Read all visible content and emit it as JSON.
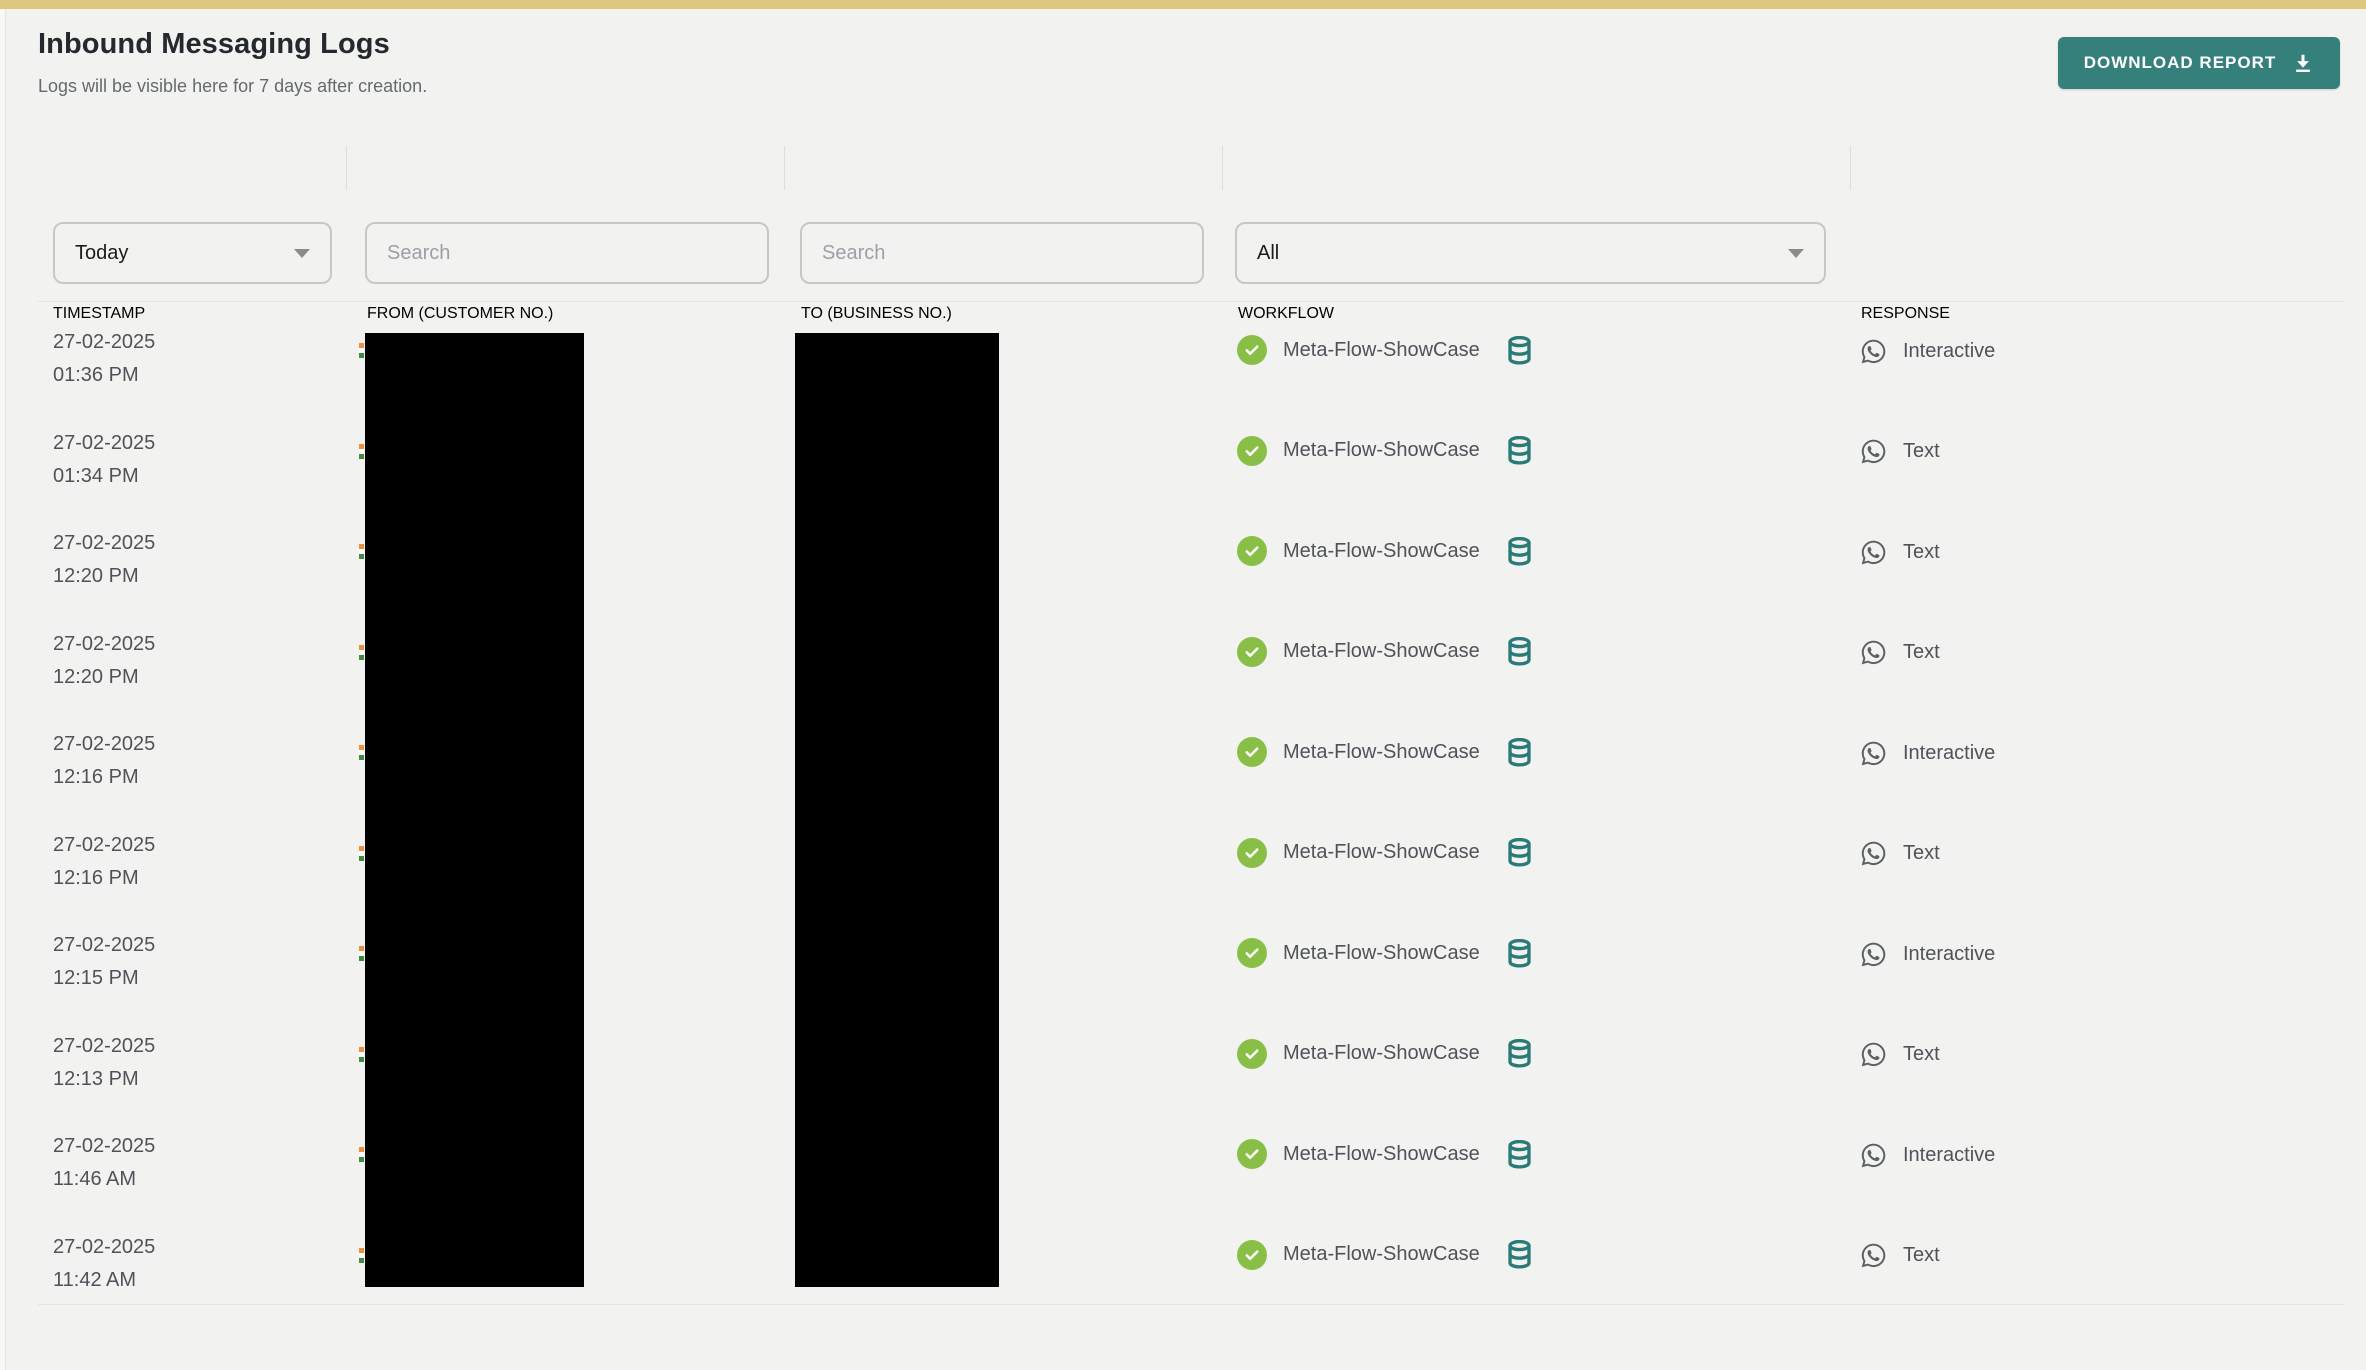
{
  "topbar": {
    "color": "#dcc87e"
  },
  "header": {
    "title": "Inbound Messaging Logs",
    "subtitle": "Logs will be visible here for 7 days after creation.",
    "download_button_label": "DOWNLOAD REPORT",
    "download_button_color": "#36807b"
  },
  "filters": {
    "timestamp_select_value": "Today",
    "from_search_placeholder": "Search",
    "to_search_placeholder": "Search",
    "workflow_select_value": "All"
  },
  "table": {
    "columns": [
      "TIMESTAMP",
      "FROM (CUSTOMER NO.)",
      "TO (BUSINESS NO.)",
      "WORKFLOW",
      "RESPONSE"
    ],
    "redacted_columns": [
      "FROM (CUSTOMER NO.)",
      "TO (BUSINESS NO.)"
    ],
    "rows": [
      {
        "date": "27-02-2025",
        "time": "01:36 PM",
        "from_redacted": true,
        "to_redacted": true,
        "workflow": "Meta-Flow-ShowCase",
        "workflow_status": "success",
        "response_type": "Interactive"
      },
      {
        "date": "27-02-2025",
        "time": "01:34 PM",
        "from_redacted": true,
        "to_redacted": true,
        "workflow": "Meta-Flow-ShowCase",
        "workflow_status": "success",
        "response_type": "Text"
      },
      {
        "date": "27-02-2025",
        "time": "12:20 PM",
        "from_redacted": true,
        "to_redacted": true,
        "workflow": "Meta-Flow-ShowCase",
        "workflow_status": "success",
        "response_type": "Text"
      },
      {
        "date": "27-02-2025",
        "time": "12:20 PM",
        "from_redacted": true,
        "to_redacted": true,
        "workflow": "Meta-Flow-ShowCase",
        "workflow_status": "success",
        "response_type": "Text"
      },
      {
        "date": "27-02-2025",
        "time": "12:16 PM",
        "from_redacted": true,
        "to_redacted": true,
        "workflow": "Meta-Flow-ShowCase",
        "workflow_status": "success",
        "response_type": "Interactive"
      },
      {
        "date": "27-02-2025",
        "time": "12:16 PM",
        "from_redacted": true,
        "to_redacted": true,
        "workflow": "Meta-Flow-ShowCase",
        "workflow_status": "success",
        "response_type": "Text"
      },
      {
        "date": "27-02-2025",
        "time": "12:15 PM",
        "from_redacted": true,
        "to_redacted": true,
        "workflow": "Meta-Flow-ShowCase",
        "workflow_status": "success",
        "response_type": "Interactive"
      },
      {
        "date": "27-02-2025",
        "time": "12:13 PM",
        "from_redacted": true,
        "to_redacted": true,
        "workflow": "Meta-Flow-ShowCase",
        "workflow_status": "success",
        "response_type": "Text"
      },
      {
        "date": "27-02-2025",
        "time": "11:46 AM",
        "from_redacted": true,
        "to_redacted": true,
        "workflow": "Meta-Flow-ShowCase",
        "workflow_status": "success",
        "response_type": "Interactive"
      },
      {
        "date": "27-02-2025",
        "time": "11:42 AM",
        "from_redacted": true,
        "to_redacted": true,
        "workflow": "Meta-Flow-ShowCase",
        "workflow_status": "success",
        "response_type": "Text"
      }
    ]
  },
  "icons": {
    "download": "download-icon",
    "chevron": "chevron-down-icon",
    "success_check": "check-circle-icon",
    "database": "database-icon",
    "whatsapp": "whatsapp-icon"
  },
  "colors": {
    "top_banner": "#dcc87e",
    "accent_teal": "#36807b",
    "success_green": "#8abf47",
    "database_teal": "#2a7a78",
    "text_primary": "#24292e",
    "text_secondary": "#4f5359",
    "background": "#f2f2f1",
    "border": "#c7c7c6",
    "divider": "#e4e4e3"
  }
}
